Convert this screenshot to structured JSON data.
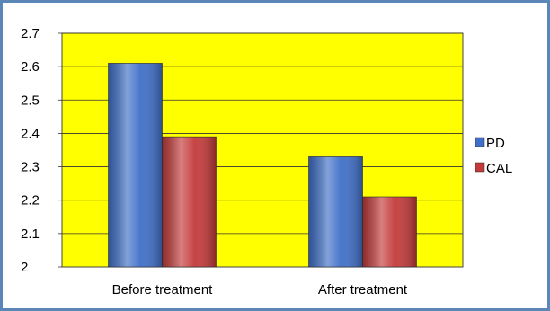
{
  "chart_data": {
    "type": "bar",
    "categories": [
      "Before treatment",
      "After treatment"
    ],
    "series": [
      {
        "name": "PD",
        "values": [
          2.61,
          2.33
        ],
        "color": "#3f6fc8"
      },
      {
        "name": "CAL",
        "values": [
          2.39,
          2.21
        ],
        "color": "#c33a3a"
      }
    ],
    "ylim": [
      2,
      2.7
    ],
    "yticks": [
      "2",
      "2.1",
      "2.2",
      "2.3",
      "2.4",
      "2.5",
      "2.6",
      "2.7"
    ],
    "grid": true,
    "legend_position": "right",
    "plot_background": "#ffff00",
    "frame_color": "#5b86b8"
  }
}
